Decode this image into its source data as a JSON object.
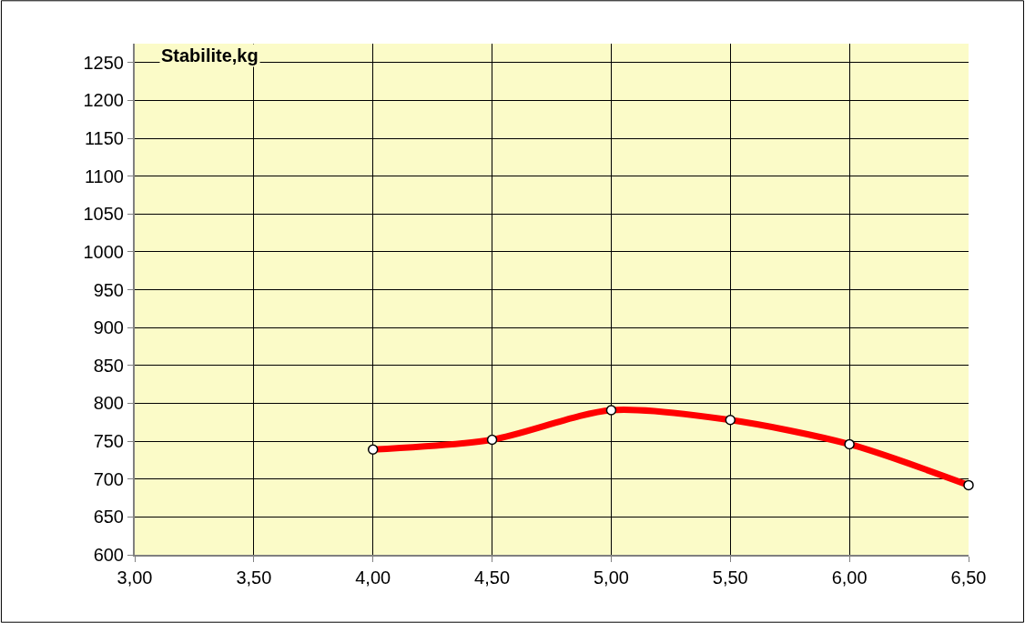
{
  "chart_data": {
    "type": "line",
    "title": "Stabilite,kg",
    "x": [
      4.0,
      4.5,
      5.0,
      5.5,
      6.0,
      6.5
    ],
    "series": [
      {
        "color": "#ff0000",
        "values": [
          739,
          752,
          791,
          778,
          746,
          692
        ]
      }
    ],
    "xlim": [
      3.0,
      6.5
    ],
    "xticks": [
      {
        "value": 3.0,
        "label": "3,00"
      },
      {
        "value": 3.5,
        "label": "3,50"
      },
      {
        "value": 4.0,
        "label": "4,00"
      },
      {
        "value": 4.5,
        "label": "4,50"
      },
      {
        "value": 5.0,
        "label": "5,00"
      },
      {
        "value": 5.5,
        "label": "5,50"
      },
      {
        "value": 6.0,
        "label": "6,00"
      },
      {
        "value": 6.5,
        "label": "6,50"
      }
    ],
    "ylim": [
      600,
      1275
    ],
    "yticks": [
      600,
      650,
      700,
      750,
      800,
      850,
      900,
      950,
      1000,
      1050,
      1100,
      1150,
      1200,
      1250
    ],
    "grid": true,
    "marker": "circle",
    "line_style": "solid"
  }
}
